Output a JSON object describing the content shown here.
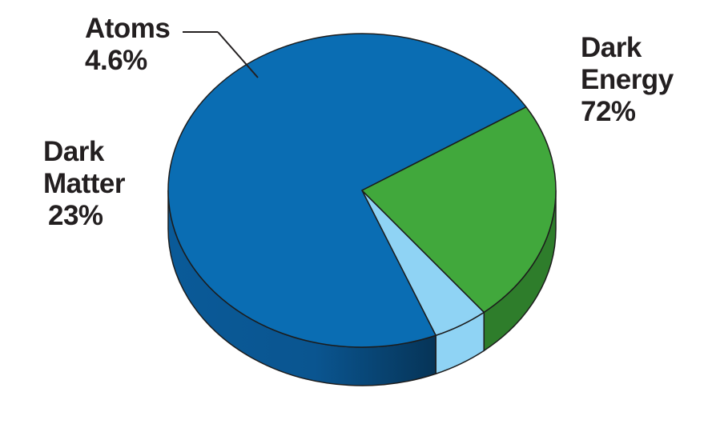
{
  "chart_data": {
    "type": "pie",
    "title": "",
    "categories": [
      "Dark Energy",
      "Dark Matter",
      "Atoms"
    ],
    "values": [
      72,
      23,
      4.6
    ],
    "unit": "%",
    "labels": {
      "dark_energy": {
        "line1": "Dark",
        "line2": "Energy",
        "value": "72%"
      },
      "dark_matter": {
        "line1": "Dark",
        "line2": "Matter",
        "value": "23%"
      },
      "atoms": {
        "line1": "Atoms",
        "value": "4.6%"
      }
    },
    "colors": {
      "Dark Energy": "#0a6db3",
      "Dark Energy Side": "#0a5590",
      "Dark Matter": "#41a83c",
      "Dark Matter Side": "#2e7d2b",
      "Atoms": "#8fd3f4",
      "Outline": "#1c1c1c"
    },
    "style": "3d",
    "legend": "none",
    "grid": false
  }
}
